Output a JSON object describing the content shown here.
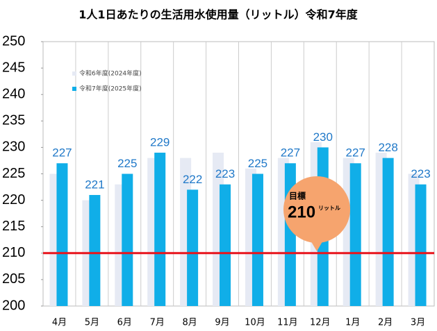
{
  "chart_data": {
    "type": "bar",
    "title": "1人1日あたりの生活用水使用量（リットル）令和7年度",
    "categories": [
      "4月",
      "5月",
      "6月",
      "7月",
      "8月",
      "9月",
      "10月",
      "11月",
      "12月",
      "1月",
      "2月",
      "3月"
    ],
    "series": [
      {
        "name": "令和6年度(2024年度)",
        "color": "#e6eaf4",
        "values": [
          225,
          220,
          223,
          228,
          228,
          229,
          226,
          228,
          231,
          228,
          229,
          225
        ]
      },
      {
        "name": "令和7年度(2025年度)",
        "color": "#10aee8",
        "values": [
          227,
          221,
          225,
          229,
          222,
          223,
          225,
          227,
          230,
          227,
          228,
          223
        ]
      }
    ],
    "ylim": [
      200,
      250
    ],
    "yticks": [
      200,
      205,
      210,
      215,
      220,
      225,
      230,
      235,
      240,
      245,
      250
    ],
    "legend": "upper-left",
    "target": {
      "label": "目標",
      "value": 210,
      "unit": "リットル",
      "color": "#e8141c"
    }
  }
}
